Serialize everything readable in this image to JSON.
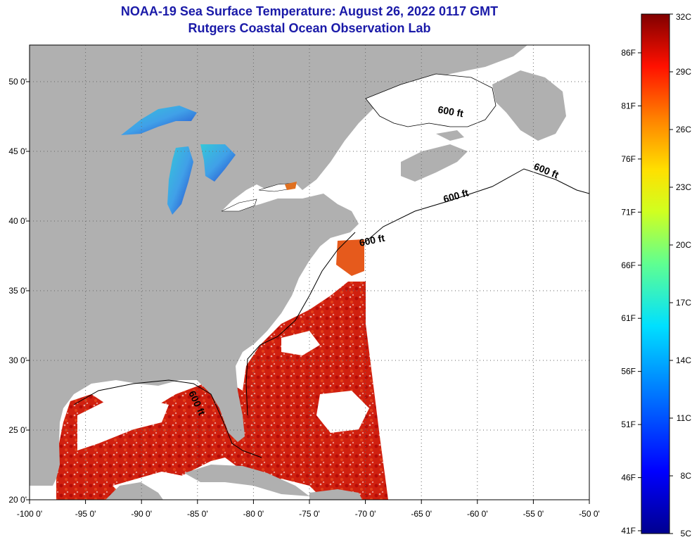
{
  "title": {
    "line1": "NOAA-19 Sea Surface Temperature:  August 26, 2022 0117 GMT",
    "line2": "Rutgers Coastal Ocean Observation Lab"
  },
  "map": {
    "lon_ticks": [
      "-100 0'",
      "-95 0'",
      "-90 0'",
      "-85 0'",
      "-80 0'",
      "-75 0'",
      "-70 0'",
      "-65 0'",
      "-60 0'",
      "-55 0'",
      "-50 0'"
    ],
    "lat_ticks": [
      "50 0'",
      "45 0'",
      "40 0'",
      "35 0'",
      "30 0'",
      "25 0'",
      "20 0'"
    ],
    "contour_labels": [
      "600 ft",
      "600 ft",
      "600 ft",
      "600 ft",
      "600 ft"
    ],
    "colors": {
      "land": "#b0b0b0",
      "ocean_nodata": "#ffffff",
      "warm": "#d42010",
      "hot": "#b80c08",
      "gulf_stream_edge": "#e8501a"
    }
  },
  "colorbar": {
    "celsius": [
      "32C",
      "29C",
      "26C",
      "23C",
      "20C",
      "17C",
      "14C",
      "11C",
      "8C",
      "5C"
    ],
    "fahrenheit": [
      "86F",
      "81F",
      "76F",
      "71F",
      "66F",
      "61F",
      "56F",
      "51F",
      "46F",
      "41F"
    ]
  }
}
